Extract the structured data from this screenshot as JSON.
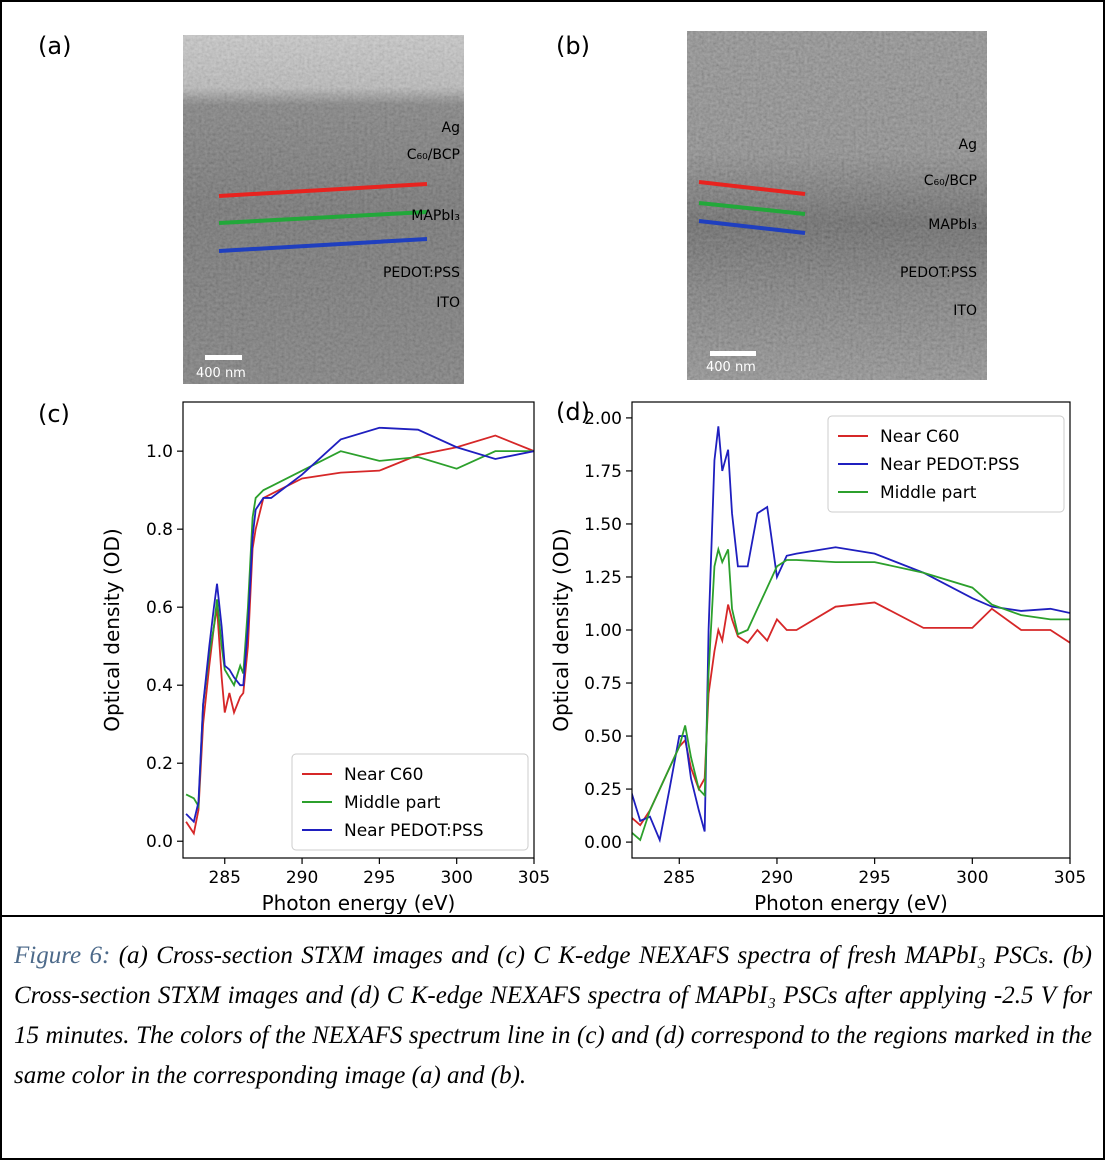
{
  "images": [
    {
      "label": "(a)",
      "layers": [
        "Ag",
        "C₆₀/BCP",
        "MAPbI₃",
        "PEDOT:PSS",
        "ITO"
      ],
      "scale_bar": "400 nm"
    },
    {
      "label": "(b)",
      "layers": [
        "Ag",
        "C₆₀/BCP",
        "MAPbI₃",
        "PEDOT:PSS",
        "ITO"
      ],
      "scale_bar": "400 nm"
    }
  ],
  "chart_data": [
    {
      "type": "line",
      "label": "(c)",
      "x_label": "Photon energy (eV)",
      "y_label": "Optical density (OD)",
      "x": [
        282.5,
        283,
        283.3,
        283.6,
        284,
        284.3,
        284.5,
        284.8,
        285,
        285.3,
        285.6,
        286,
        286.2,
        286.5,
        286.8,
        287,
        287.5,
        288,
        290,
        292.5,
        295,
        297.5,
        300,
        302.5,
        305
      ],
      "series": [
        {
          "name": "Near C60",
          "color": "#d62728",
          "values": [
            0.05,
            0.02,
            0.08,
            0.3,
            0.45,
            0.55,
            0.6,
            0.42,
            0.33,
            0.38,
            0.33,
            0.37,
            0.38,
            0.5,
            0.75,
            0.8,
            0.88,
            0.89,
            0.93,
            0.945,
            0.95,
            0.99,
            1.01,
            1.04,
            1.0
          ]
        },
        {
          "name": "Middle part",
          "color": "#2ca02c",
          "values": [
            0.12,
            0.11,
            0.09,
            0.35,
            0.48,
            0.55,
            0.62,
            0.5,
            0.44,
            0.42,
            0.4,
            0.45,
            0.43,
            0.6,
            0.83,
            0.88,
            0.9,
            0.91,
            0.95,
            1.0,
            0.975,
            0.985,
            0.955,
            1.0,
            1.0
          ]
        },
        {
          "name": "Near PEDOT:PSS",
          "color": "#1f1fbf",
          "values": [
            0.07,
            0.05,
            0.1,
            0.35,
            0.5,
            0.6,
            0.66,
            0.55,
            0.45,
            0.44,
            0.42,
            0.4,
            0.4,
            0.55,
            0.78,
            0.85,
            0.88,
            0.88,
            0.94,
            1.03,
            1.06,
            1.055,
            1.01,
            0.98,
            1.0
          ]
        }
      ],
      "xlim": [
        282.3,
        305
      ],
      "ylim": [
        -0.043,
        1.126
      ],
      "xticks": [
        285,
        290,
        295,
        300,
        305
      ],
      "yticks": [
        {
          "value": 0,
          "label": "0.0"
        },
        0.2,
        0.4,
        0.6,
        0.8,
        {
          "value": 1,
          "label": "1.0"
        }
      ],
      "legend": "lower right"
    },
    {
      "type": "line",
      "label": "(d)",
      "x_label": "Photon energy (eV)",
      "y_label": "Optical density (OD)",
      "x": [
        282.5,
        283,
        283.5,
        284,
        284.5,
        285,
        285.3,
        285.6,
        286,
        286.3,
        286.5,
        286.8,
        287,
        287.2,
        287.5,
        287.7,
        288,
        288.5,
        289,
        289.5,
        290,
        290.5,
        291,
        293,
        295,
        297.5,
        300,
        301,
        302.5,
        304,
        305
      ],
      "series": [
        {
          "name": "Near C60",
          "color": "#d62728",
          "values": [
            0.12,
            0.08,
            0.15,
            0.25,
            0.35,
            0.45,
            0.48,
            0.35,
            0.25,
            0.3,
            0.7,
            0.9,
            1.0,
            0.95,
            1.12,
            1.05,
            0.97,
            0.94,
            1.0,
            0.95,
            1.05,
            1.0,
            1.0,
            1.11,
            1.13,
            1.01,
            1.01,
            1.1,
            1.0,
            1.0,
            0.94
          ]
        },
        {
          "name": "Near PEDOT:PSS",
          "color": "#1f1fbf",
          "values": [
            0.25,
            0.1,
            0.12,
            0.01,
            0.25,
            0.5,
            0.5,
            0.3,
            0.15,
            0.05,
            1.0,
            1.8,
            1.96,
            1.75,
            1.85,
            1.55,
            1.3,
            1.3,
            1.55,
            1.58,
            1.25,
            1.35,
            1.36,
            1.39,
            1.36,
            1.27,
            1.15,
            1.11,
            1.09,
            1.1,
            1.08
          ]
        },
        {
          "name": "Middle part",
          "color": "#2ca02c",
          "values": [
            0.05,
            0.01,
            0.15,
            0.25,
            0.35,
            0.45,
            0.55,
            0.4,
            0.25,
            0.22,
            0.8,
            1.3,
            1.38,
            1.32,
            1.38,
            1.1,
            0.98,
            1.0,
            1.1,
            1.2,
            1.3,
            1.33,
            1.33,
            1.32,
            1.32,
            1.27,
            1.2,
            1.12,
            1.07,
            1.05,
            1.05
          ]
        }
      ],
      "xlim": [
        282.58,
        305
      ],
      "ylim": [
        -0.075,
        2.075
      ],
      "xticks": [
        285,
        290,
        295,
        300,
        305
      ],
      "yticks": [
        {
          "value": 0,
          "label": "0.00"
        },
        0.25,
        {
          "value": 0.5,
          "label": "0.50"
        },
        0.75,
        {
          "value": 1,
          "label": "1.00"
        },
        1.25,
        {
          "value": 1.5,
          "label": "1.50"
        },
        1.75,
        {
          "value": 2,
          "label": "2.00"
        }
      ],
      "legend": "upper right"
    }
  ],
  "caption": {
    "label": "Figure 6:",
    "text": "(a) Cross-section STXM images and (c) C K-edge NEXAFS spectra of fresh MAPbI₃ PSCs. (b) Cross-section STXM images and (d) C K-edge NEXAFS spectra of MAPbI₃ PSCs after applying -2.5 V for 15 minutes. The colors of the NEXAFS spectrum line in (c) and (d) correspond to the regions marked in the same color in the corresponding image (a) and (b)."
  }
}
